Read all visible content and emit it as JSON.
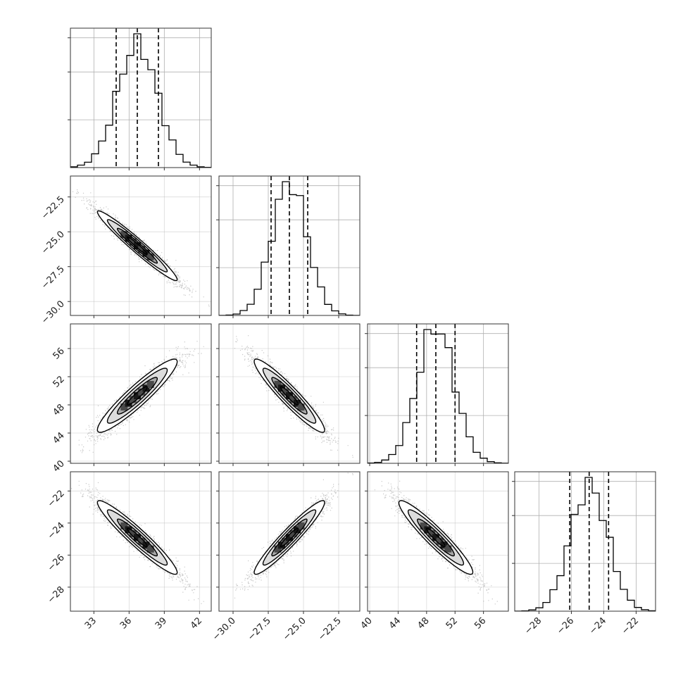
{
  "chart_data": {
    "type": "corner",
    "title": "",
    "parameters": [
      {
        "name": "",
        "range": [
          31,
          43
        ],
        "ticks": [
          33,
          36,
          39,
          42
        ],
        "tick_labels": [
          "33",
          "36",
          "39",
          "42"
        ],
        "mean": 36.7,
        "sigma": 1.7,
        "quantiles": [
          34.9,
          36.7,
          38.5
        ]
      },
      {
        "name": "",
        "range": [
          -31,
          -21
        ],
        "ticks": [
          -30.0,
          -27.5,
          -25.0,
          -22.5
        ],
        "tick_labels": [
          "−30.0",
          "−27.5",
          "−25.0",
          "−22.5"
        ],
        "mean": -26.0,
        "sigma": 1.25,
        "quantiles": [
          -27.3,
          -26.0,
          -24.7
        ]
      },
      {
        "name": "",
        "range": [
          39.7,
          59.5
        ],
        "ticks": [
          40,
          44,
          48,
          52,
          56
        ],
        "tick_labels": [
          "40",
          "44",
          "48",
          "52",
          "56"
        ],
        "mean": 49.3,
        "sigma": 2.6,
        "quantiles": [
          46.6,
          49.3,
          52.0
        ]
      },
      {
        "name": "",
        "range": [
          -29.5,
          -20.8
        ],
        "ticks": [
          -28,
          -26,
          -24,
          -22
        ],
        "tick_labels": [
          "−28",
          "−26",
          "−24",
          "−22"
        ],
        "mean": -24.9,
        "sigma": 1.15,
        "quantiles": [
          -26.1,
          -24.9,
          -23.7
        ]
      }
    ],
    "correlations": [
      [
        1.0,
        -0.97,
        0.93,
        -0.95
      ],
      [
        -0.97,
        1.0,
        -0.94,
        0.95
      ],
      [
        0.93,
        -0.94,
        1.0,
        -0.94
      ],
      [
        -0.95,
        0.95,
        -0.94,
        1.0
      ]
    ],
    "contour_levels_sigma": [
      0.5,
      1.0,
      1.5,
      2.0
    ],
    "histogram_bins": 20,
    "grid": true,
    "legend": "none"
  }
}
